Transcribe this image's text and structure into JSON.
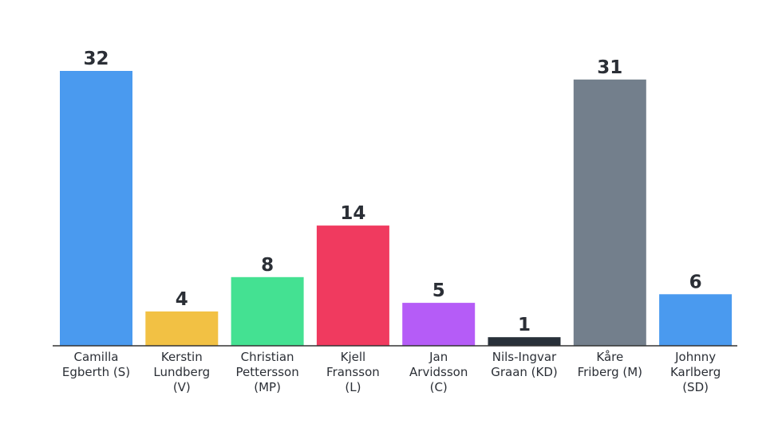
{
  "chart_data": {
    "type": "bar",
    "categories": [
      [
        "Camilla",
        "Egberth (S)"
      ],
      [
        "Kerstin",
        "Lundberg",
        "(V)"
      ],
      [
        "Christian",
        "Pettersson",
        "(MP)"
      ],
      [
        "Kjell",
        "Fransson",
        "(L)"
      ],
      [
        "Jan",
        "Arvidsson",
        "(C)"
      ],
      [
        "Nils-Ingvar",
        "Graan (KD)"
      ],
      [
        "Kåre",
        "Friberg (M)"
      ],
      [
        "Johnny",
        "Karlberg",
        "(SD)"
      ]
    ],
    "values": [
      32,
      4,
      8,
      14,
      5,
      1,
      31,
      6
    ],
    "colors": [
      "#4a9aef",
      "#f2c144",
      "#44e192",
      "#f03a5f",
      "#b55cf7",
      "#283039",
      "#737f8c",
      "#4a9aef"
    ],
    "data_labels": [
      "32",
      "4",
      "8",
      "14",
      "5",
      "1",
      "31",
      "6"
    ],
    "axis_color": "#333333",
    "ylim": [
      0,
      32
    ],
    "grid": false,
    "legend": "none"
  }
}
